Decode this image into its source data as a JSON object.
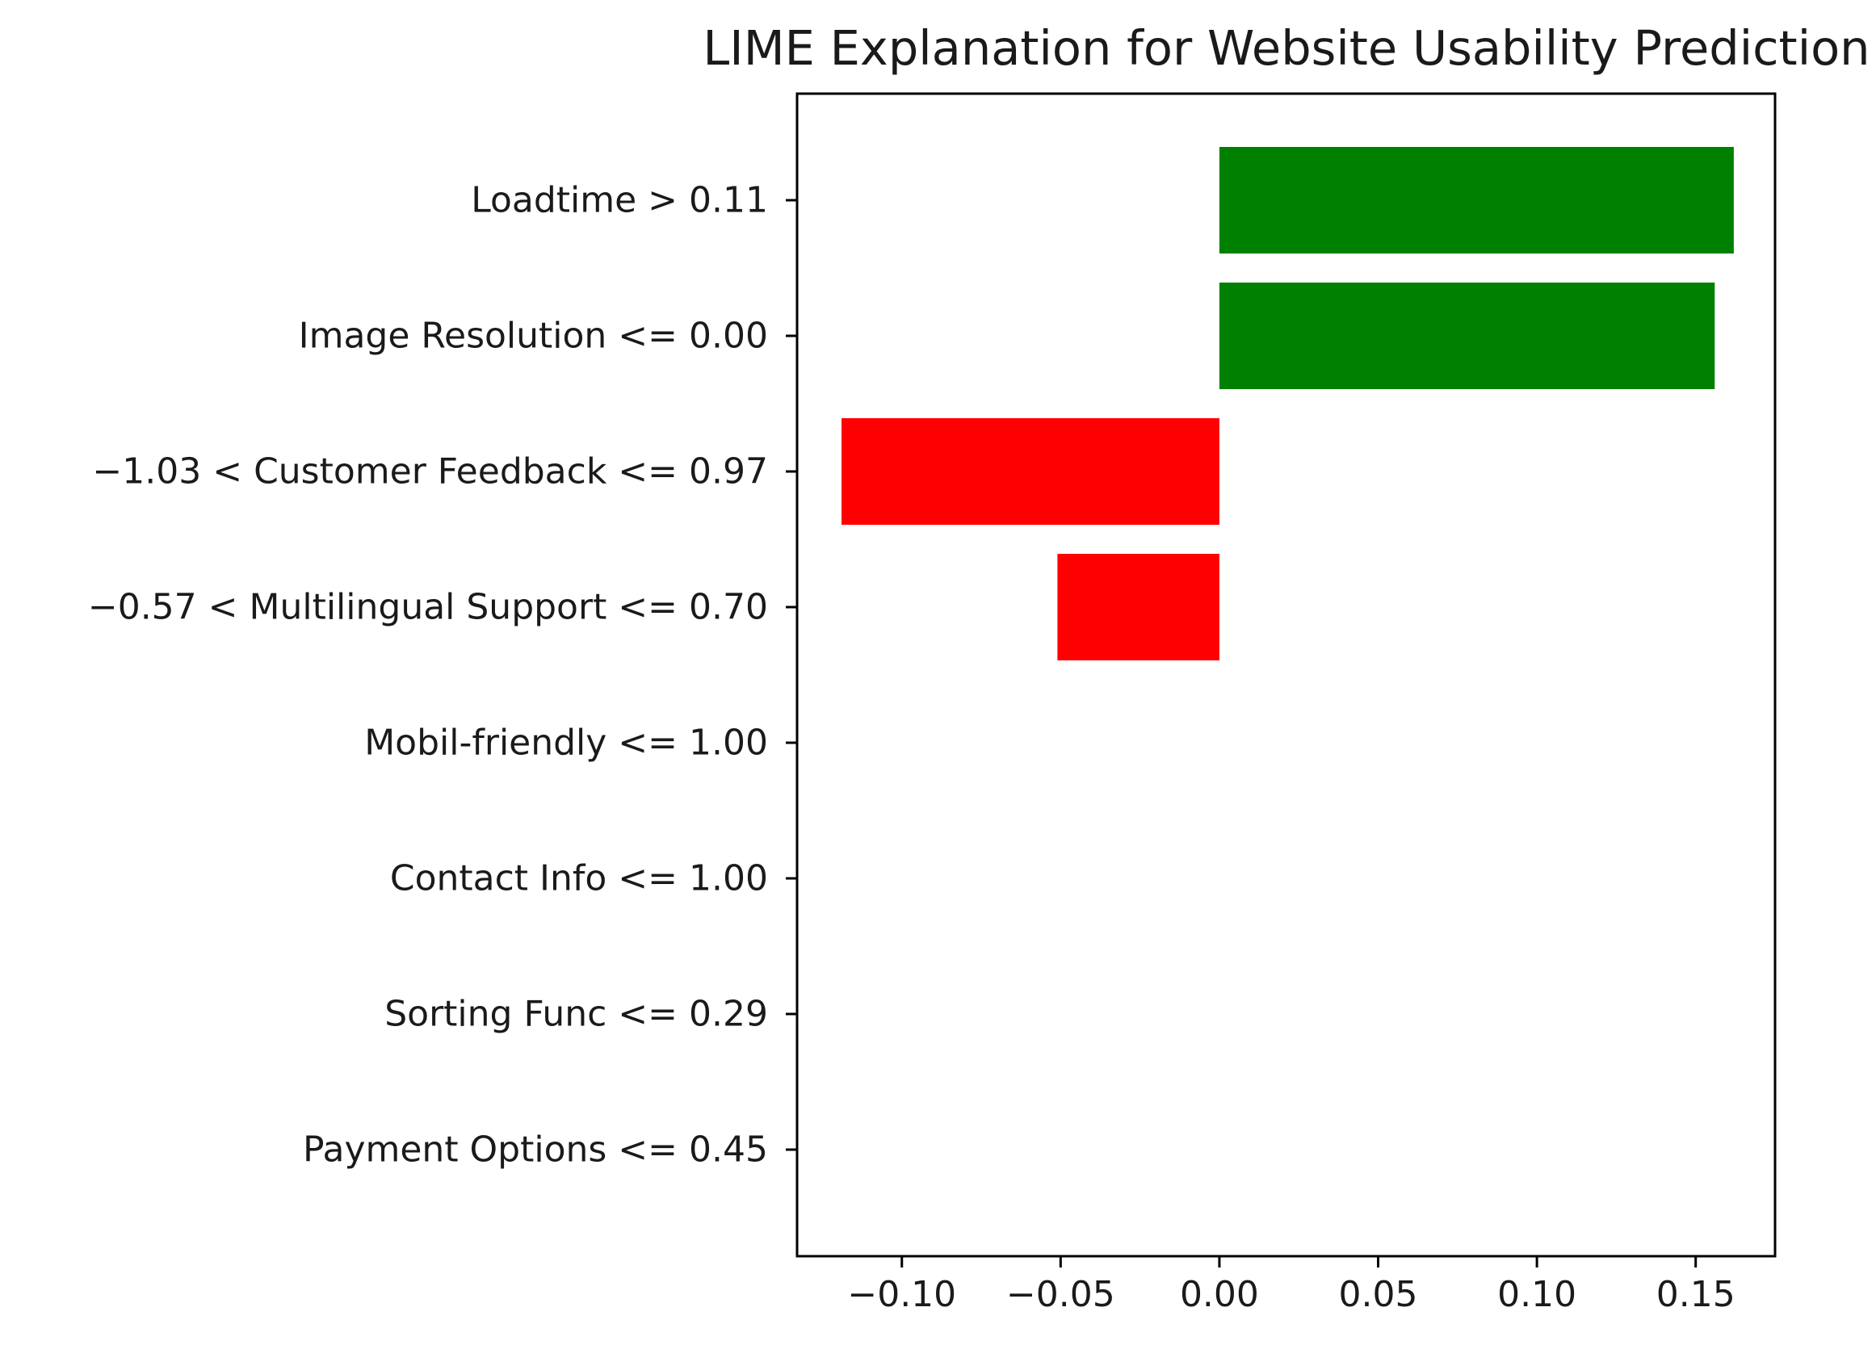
{
  "chart_data": {
    "type": "bar",
    "orientation": "horizontal",
    "title": "LIME Explanation for Website Usability Prediction",
    "xlabel": "",
    "ylabel": "",
    "categories": [
      "Loadtime > 0.11",
      "Image Resolution <= 0.00",
      "−1.03 < Customer Feedback <= 0.97",
      "−0.57 < Multilingual Support <= 0.70",
      "Mobil-friendly <= 1.00",
      "Contact Info <= 1.00",
      "Sorting Func <= 0.29",
      "Payment Options <= 0.45"
    ],
    "values": [
      0.162,
      0.156,
      -0.119,
      -0.051,
      0.0,
      0.0,
      0.0,
      0.0
    ],
    "xlim": [
      -0.133,
      0.175
    ],
    "xticks": [
      -0.1,
      -0.05,
      0.0,
      0.05,
      0.1,
      0.15
    ],
    "xtick_labels": [
      "−0.10",
      "−0.05",
      "0.00",
      "0.05",
      "0.10",
      "0.15"
    ],
    "grid": false,
    "legend": "none",
    "colors": {
      "positive": "#008000",
      "negative": "#ff0000",
      "axis": "#000000"
    }
  }
}
